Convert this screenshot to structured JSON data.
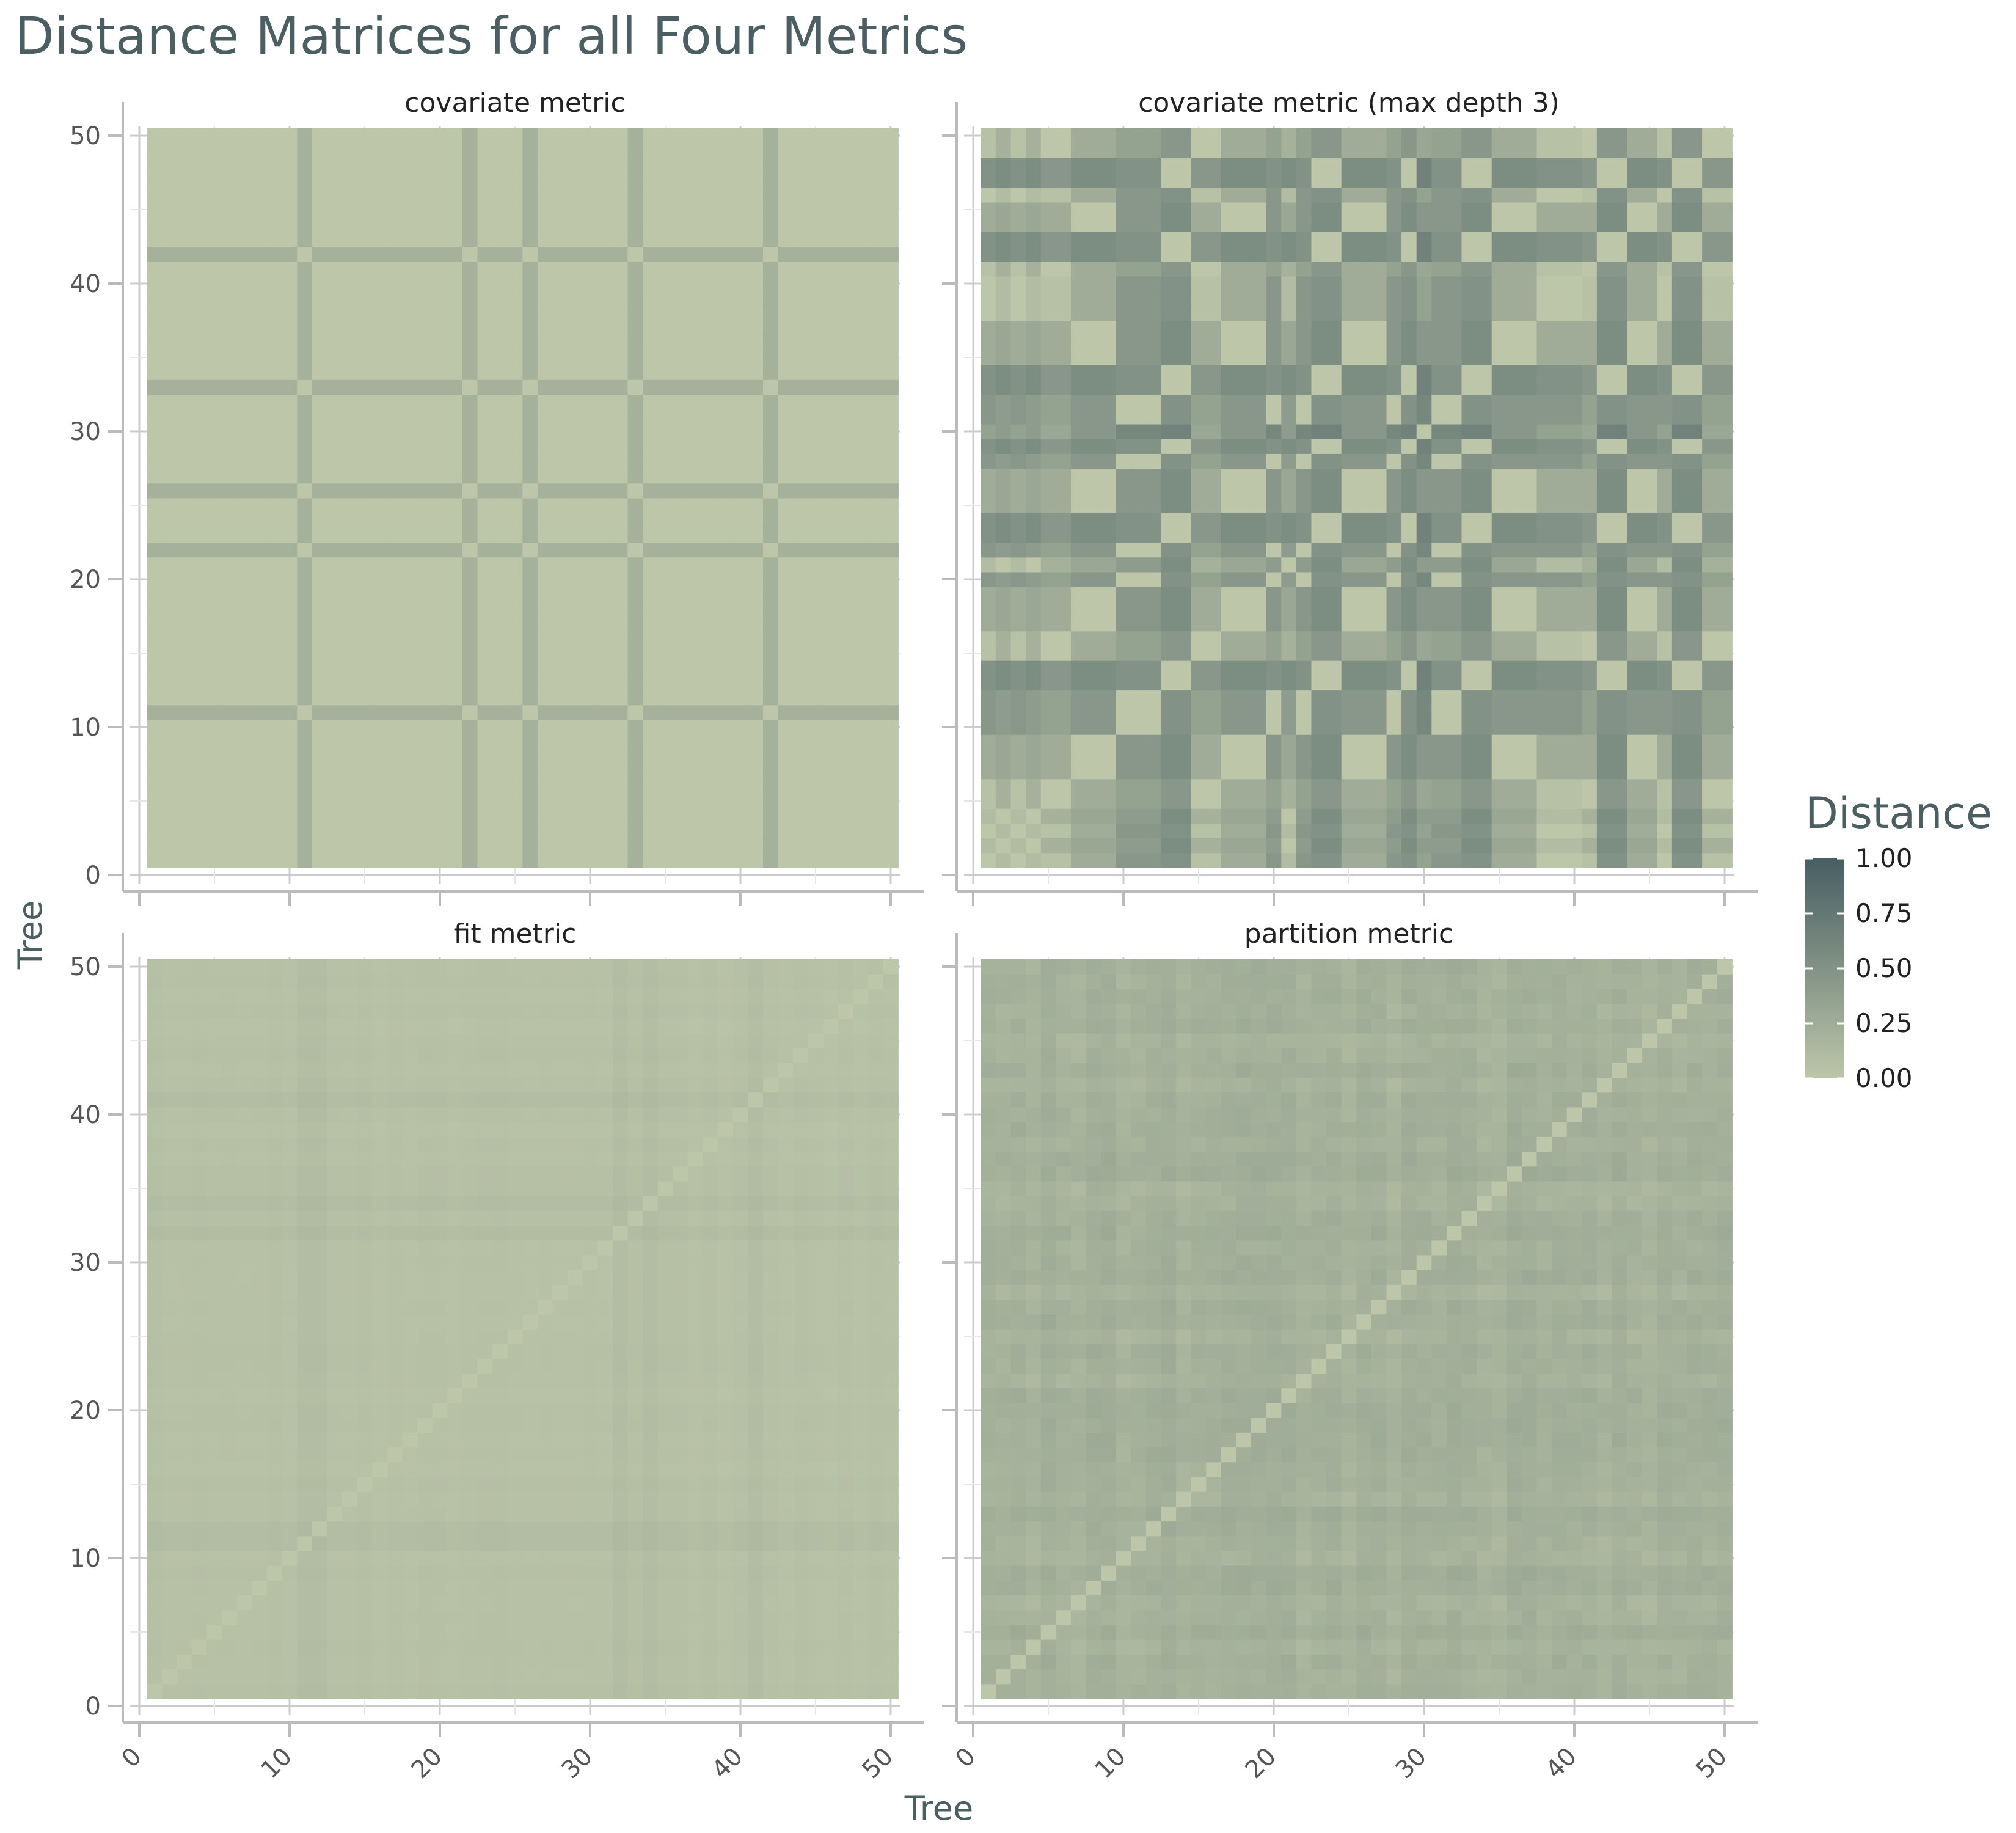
{
  "chart_data": {
    "type": "heatmap",
    "title": "Distance Matrices for all Four Metrics",
    "xlabel": "Tree",
    "ylabel": "Tree",
    "n_trees": 50,
    "axis_ticks": [
      0,
      10,
      20,
      30,
      40,
      50
    ],
    "xlim": [
      0,
      50
    ],
    "ylim": [
      0,
      50
    ],
    "grid": true,
    "colors": {
      "low": "#bdc6a9",
      "high": "#475e62"
    },
    "legend": {
      "title": "Distance",
      "placement": "right",
      "range": [
        0,
        1
      ],
      "ticks": [
        "0.00",
        "0.25",
        "0.50",
        "0.75",
        "1.00"
      ]
    },
    "panels": [
      {
        "name": "covariate metric",
        "model": "binary_feature",
        "notes": "All trees distance 0 except trees 11, 22, 26, 33, 42 which differ (~0.2) from the rest",
        "special_trees": [
          11,
          22,
          26,
          33,
          42
        ],
        "base_value": 0.0,
        "special_value": 0.2
      },
      {
        "name": "covariate metric (max depth 3)",
        "model": "group_pattern",
        "tree_group": [
          0,
          1,
          0,
          1,
          2,
          2,
          3,
          3,
          3,
          4,
          4,
          4,
          5,
          5,
          2,
          2,
          3,
          3,
          3,
          4,
          1,
          4,
          5,
          5,
          3,
          3,
          3,
          4,
          5,
          6,
          4,
          4,
          5,
          5,
          3,
          3,
          3,
          0,
          0,
          0,
          2,
          5,
          5,
          3,
          3,
          0,
          5,
          5,
          2,
          2
        ],
        "group_values": [
          [
            0.0,
            0.1,
            0.05,
            0.25,
            0.45,
            0.5,
            0.35
          ],
          [
            0.1,
            0.0,
            0.2,
            0.3,
            0.4,
            0.55,
            0.4
          ],
          [
            0.05,
            0.2,
            0.0,
            0.25,
            0.35,
            0.45,
            0.3
          ],
          [
            0.25,
            0.3,
            0.25,
            0.0,
            0.45,
            0.55,
            0.45
          ],
          [
            0.45,
            0.4,
            0.35,
            0.45,
            0.0,
            0.5,
            0.6
          ],
          [
            0.5,
            0.55,
            0.45,
            0.55,
            0.5,
            0.0,
            0.65
          ],
          [
            0.35,
            0.4,
            0.3,
            0.45,
            0.6,
            0.65,
            0.0
          ]
        ]
      },
      {
        "name": "fit metric",
        "model": "additive",
        "value_range": [
          0.03,
          0.13
        ],
        "strong_trees": [
          11,
          12,
          32,
          34,
          41
        ],
        "diagonal": 0.0
      },
      {
        "name": "partition metric",
        "model": "additive_noise",
        "value_range": [
          0.1,
          0.3
        ],
        "diagonal": 0.0
      }
    ]
  }
}
